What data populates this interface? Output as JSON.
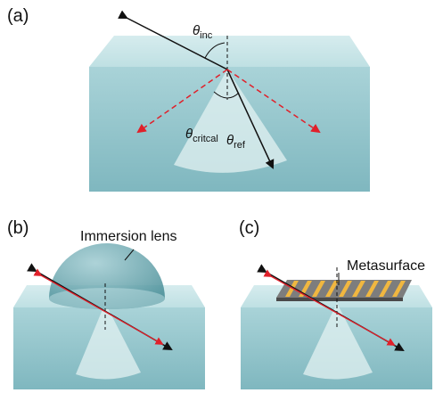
{
  "panels": [
    {
      "label": "(a)",
      "annotations": [
        {
          "symbol": "θ",
          "subscript": "inc"
        },
        {
          "symbol": "θ",
          "subscript": "critcal"
        },
        {
          "symbol": "θ",
          "subscript": "ref"
        }
      ]
    },
    {
      "label": "(b)",
      "annotations": [
        {
          "text": "Immersion lens"
        }
      ]
    },
    {
      "label": "(c)",
      "annotations": [
        {
          "text": "Metasurface"
        }
      ]
    }
  ]
}
